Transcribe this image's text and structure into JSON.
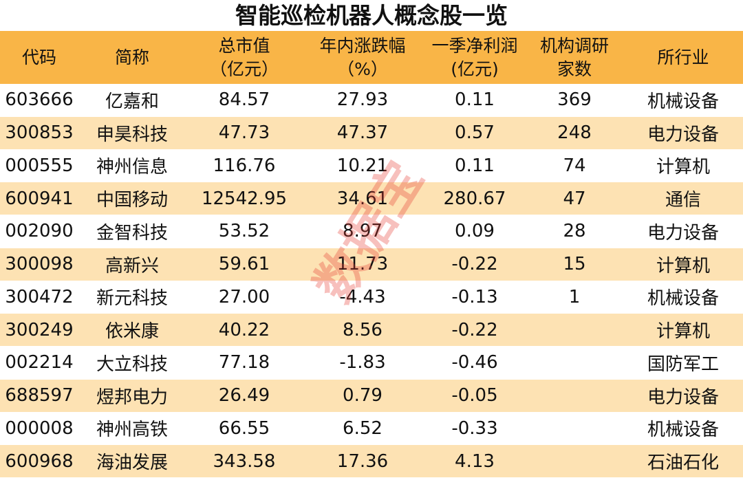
{
  "title": "智能巡检机器人概念股一览",
  "watermark": "数据宝",
  "table": {
    "columns": [
      {
        "key": "code",
        "header": [
          "代码"
        ]
      },
      {
        "key": "name",
        "header": [
          "简称"
        ]
      },
      {
        "key": "cap",
        "header": [
          "总市值",
          "（亿元）"
        ]
      },
      {
        "key": "change",
        "header": [
          "年内涨跌幅",
          "（%）"
        ]
      },
      {
        "key": "profit",
        "header": [
          "一季净利润",
          "(亿元)"
        ]
      },
      {
        "key": "visits",
        "header": [
          "机构调研",
          "家数"
        ]
      },
      {
        "key": "industry",
        "header": [
          "所行业"
        ]
      }
    ],
    "rows": [
      {
        "code": "603666",
        "name": "亿嘉和",
        "cap": "84.57",
        "change": "27.93",
        "profit": "0.11",
        "visits": "369",
        "industry": "机械设备"
      },
      {
        "code": "300853",
        "name": "申昊科技",
        "cap": "47.73",
        "change": "47.37",
        "profit": "0.57",
        "visits": "248",
        "industry": "电力设备"
      },
      {
        "code": "000555",
        "name": "神州信息",
        "cap": "116.76",
        "change": "10.21",
        "profit": "0.11",
        "visits": "74",
        "industry": "计算机"
      },
      {
        "code": "600941",
        "name": "中国移动",
        "cap": "12542.95",
        "change": "34.61",
        "profit": "280.67",
        "visits": "47",
        "industry": "通信"
      },
      {
        "code": "002090",
        "name": "金智科技",
        "cap": "53.52",
        "change": "8.97",
        "profit": "0.09",
        "visits": "28",
        "industry": "电力设备"
      },
      {
        "code": "300098",
        "name": "高新兴",
        "cap": "59.61",
        "change": "11.73",
        "profit": "-0.22",
        "visits": "15",
        "industry": "计算机"
      },
      {
        "code": "300472",
        "name": "新元科技",
        "cap": "27.00",
        "change": "-4.43",
        "profit": "-0.13",
        "visits": "1",
        "industry": "机械设备"
      },
      {
        "code": "300249",
        "name": "依米康",
        "cap": "40.22",
        "change": "8.56",
        "profit": "-0.22",
        "industry": "计算机"
      },
      {
        "code": "002214",
        "name": "大立科技",
        "cap": "77.18",
        "change": "-1.83",
        "profit": "-0.46",
        "industry": "国防军工"
      },
      {
        "code": "688597",
        "name": "煜邦电力",
        "cap": "26.49",
        "change": "0.79",
        "profit": "-0.05",
        "industry": "电力设备"
      },
      {
        "code": "000008",
        "name": "神州高铁",
        "cap": "66.55",
        "change": "6.52",
        "profit": "-0.33",
        "industry": "机械设备"
      },
      {
        "code": "600968",
        "name": "海油发展",
        "cap": "343.58",
        "change": "17.36",
        "profit": "4.13",
        "industry": "石油石化"
      }
    ]
  }
}
